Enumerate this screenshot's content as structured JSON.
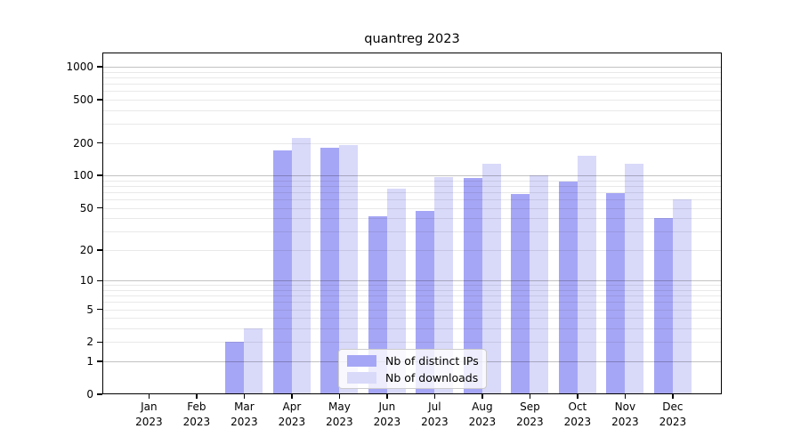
{
  "chart_data": {
    "type": "bar",
    "title": "quantreg 2023",
    "categories": [
      "Jan",
      "Feb",
      "Mar",
      "Apr",
      "May",
      "Jun",
      "Jul",
      "Aug",
      "Sep",
      "Oct",
      "Nov",
      "Dec"
    ],
    "x_axis": {
      "year": "2023"
    },
    "y_axis": {
      "scale": "log1p",
      "tick_labels": [
        "0",
        "1",
        "2",
        "5",
        "10",
        "20",
        "50",
        "100",
        "200",
        "500",
        "1000"
      ],
      "major_gridlines": [
        1,
        10,
        100,
        1000
      ],
      "minor_gridlines": [
        2,
        3,
        4,
        5,
        6,
        7,
        8,
        9,
        20,
        30,
        40,
        50,
        60,
        70,
        80,
        90,
        200,
        300,
        400,
        500,
        600,
        700,
        800,
        900
      ],
      "range": [
        0,
        1350
      ]
    },
    "series": [
      {
        "name": "Nb of distinct IPs",
        "color": "#a6a6f6",
        "values": [
          0,
          0,
          2,
          170,
          180,
          42,
          47,
          95,
          67,
          88,
          68,
          40
        ]
      },
      {
        "name": "Nb of downloads",
        "color": "#d9d9fa",
        "values": [
          0,
          0,
          3,
          220,
          190,
          75,
          97,
          128,
          100,
          152,
          129,
          60
        ]
      }
    ],
    "legend": {
      "position": "lower center",
      "entries": [
        "Nb of distinct IPs",
        "Nb of downloads"
      ]
    },
    "grid": true
  }
}
